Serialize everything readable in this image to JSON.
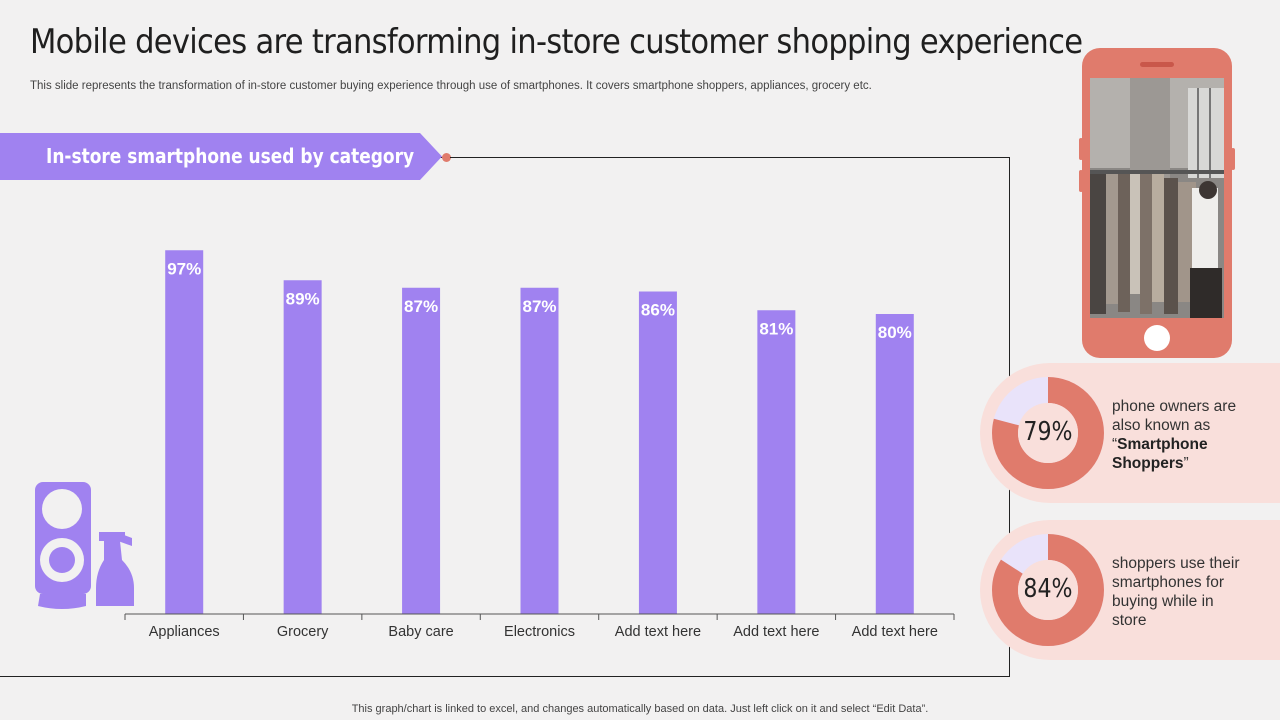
{
  "header": {
    "title": "Mobile devices are transforming in-store customer shopping experience",
    "subtitle": "This slide represents the transformation of in-store customer buying experience through use of smartphones. It covers smartphone shoppers, appliances, grocery etc."
  },
  "banner": {
    "label": "In-store smartphone used by category"
  },
  "chart_data": {
    "type": "bar",
    "title": "In-store smartphone used by category",
    "categories": [
      "Appliances",
      "Grocery",
      "Baby care",
      "Electronics",
      "Add text here",
      "Add text here",
      "Add text here"
    ],
    "values": [
      97,
      89,
      87,
      87,
      86,
      81,
      80
    ],
    "data_labels": [
      "97%",
      "89%",
      "87%",
      "87%",
      "86%",
      "81%",
      "80%"
    ],
    "ylim": [
      0,
      100
    ],
    "xlabel": "",
    "ylabel": "",
    "grid": false,
    "bar_color": "#a082f0"
  },
  "stats": [
    {
      "value": 79,
      "label": "79%",
      "text_before": "phone owners are also known as “",
      "text_bold": "Smartphone Shoppers",
      "text_after": "”"
    },
    {
      "value": 84,
      "label": "84%",
      "text_before": "shoppers use their smartphones for buying while in store",
      "text_bold": "",
      "text_after": ""
    }
  ],
  "footer": {
    "note": "This graph/chart is linked to excel, and changes automatically based on data. Just left click on it and select “Edit Data”."
  },
  "colors": {
    "bar": "#a082f0",
    "accent": "#e07b6c",
    "donut_rest": "#e9e3fa",
    "card_bg": "#f9dfdb",
    "background": "#f2f1f1"
  }
}
